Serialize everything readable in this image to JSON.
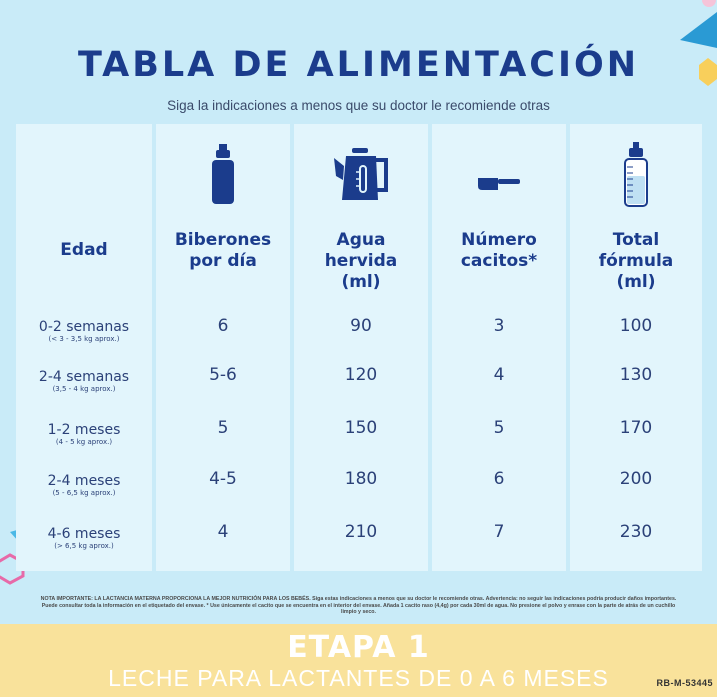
{
  "title": "TABLA DE ALIMENTACIÓN",
  "subtitle": "Siga la indicaciones a menos que su doctor le recomiende otras",
  "headers": {
    "age": "Edad",
    "bottles": [
      "Biberones",
      "por día"
    ],
    "water": [
      "Agua",
      "hervida",
      "(ml)"
    ],
    "scoops": [
      "Número",
      "cacitos*"
    ],
    "total": [
      "Total",
      "fórmula",
      "(ml)"
    ]
  },
  "rows": [
    {
      "age": "0-2 semanas",
      "weight": "(< 3 - 3,5 kg aprox.)",
      "bottles": "6",
      "water": "90",
      "scoops": "3",
      "total": "100"
    },
    {
      "age": "2-4 semanas",
      "weight": "(3,5 - 4 kg aprox.)",
      "bottles": "5-6",
      "water": "120",
      "scoops": "4",
      "total": "130"
    },
    {
      "age": "1-2 meses",
      "weight": "(4 - 5 kg aprox.)",
      "bottles": "5",
      "water": "150",
      "scoops": "5",
      "total": "170"
    },
    {
      "age": "2-4 meses",
      "weight": "(5 - 6,5 kg aprox.)",
      "bottles": "4-5",
      "water": "180",
      "scoops": "6",
      "total": "200"
    },
    {
      "age": "4-6 meses",
      "weight": "(> 6,5 kg aprox.)",
      "bottles": "4",
      "water": "210",
      "scoops": "7",
      "total": "230"
    }
  ],
  "note": "NOTA IMPORTANTE: LA LACTANCIA MATERNA PROPORCIONA LA MEJOR NUTRICIÓN PARA LOS BEBÉS. Siga estas indicaciones a menos que su doctor le recomiende otras. Advertencia: no seguir las indicaciones podría producir daños importantes. Puede consultar toda la información en el etiquetado del envase. * Use únicamente el cacito que se encuentra en el interior del envase. Añada 1 cacito raso (4,4g) por cada 30ml de agua. No presione el polvo y enrase con la parte de atrás de un cuchillo limpio y seco.",
  "band": {
    "title": "ETAPA 1",
    "subtitle": "LECHE PARA LACTANTES DE 0 A 6 MESES"
  },
  "code": "RB-M-53445",
  "icons": [
    "bottle-icon",
    "kettle-icon",
    "scoop-icon",
    "measuring-bottle-icon"
  ],
  "colors": {
    "background": "#c9ebf8",
    "column": "#e2f5fc",
    "title": "#1b3c8c",
    "band": "#f9e29b"
  }
}
